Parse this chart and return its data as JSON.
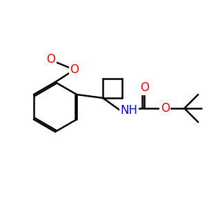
{
  "background": "#ffffff",
  "bond_color": "#000000",
  "bond_width": 1.8,
  "atom_colors": {
    "O": "#ff0000",
    "N": "#0000ff",
    "C": "#000000"
  },
  "font_size": 11,
  "figsize": [
    3.0,
    3.0
  ],
  "dpi": 100
}
